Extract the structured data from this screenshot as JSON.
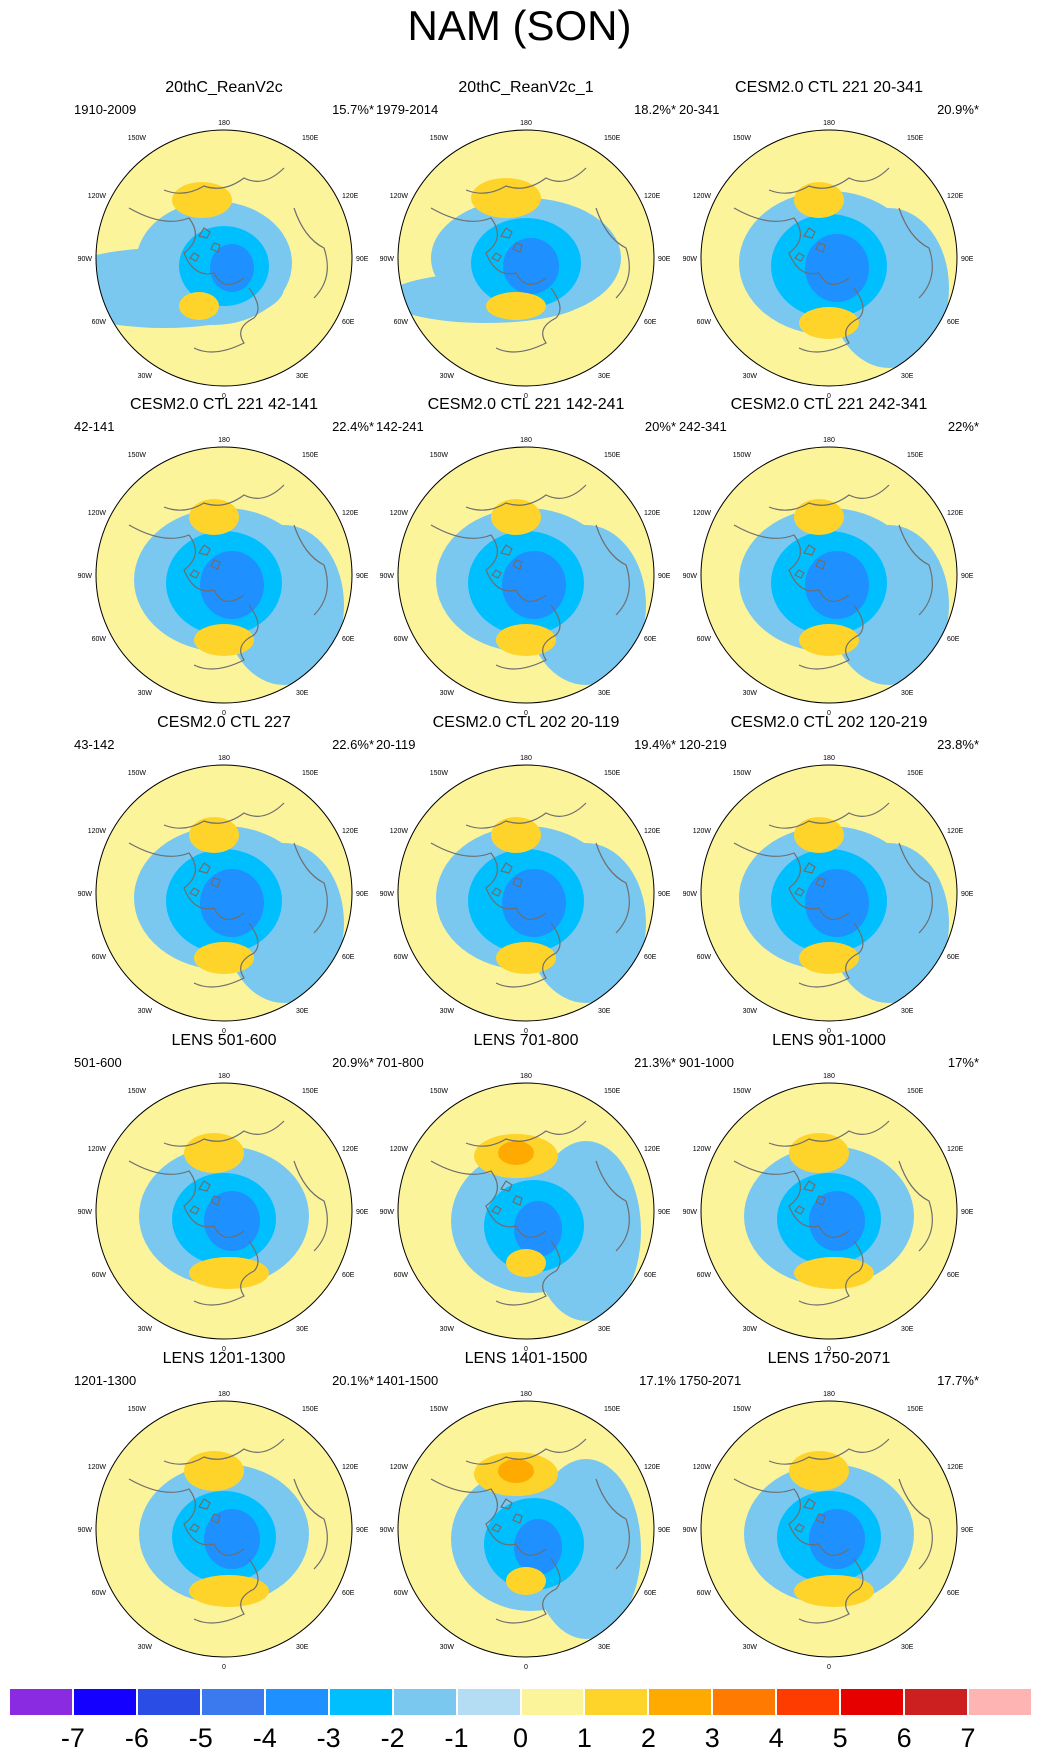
{
  "title": "NAM (SON)",
  "panels": [
    {
      "title": "20thC_ReanV2c",
      "period": "1910-2009",
      "variance": "15.7%*",
      "pattern": "A"
    },
    {
      "title": "20thC_ReanV2c_1",
      "period": "1979-2014",
      "variance": "18.2%*",
      "pattern": "B"
    },
    {
      "title": "CESM2.0 CTL 221 20-341",
      "period": "20-341",
      "variance": "20.9%*",
      "pattern": "C"
    },
    {
      "title": "CESM2.0 CTL 221 42-141",
      "period": "42-141",
      "variance": "22.4%*",
      "pattern": "C"
    },
    {
      "title": "CESM2.0 CTL 221 142-241",
      "period": "142-241",
      "variance": "20%*",
      "pattern": "C"
    },
    {
      "title": "CESM2.0 CTL 221 242-341",
      "period": "242-341",
      "variance": "22%*",
      "pattern": "C"
    },
    {
      "title": "CESM2.0 CTL 227",
      "period": "43-142",
      "variance": "22.6%*",
      "pattern": "C"
    },
    {
      "title": "CESM2.0 CTL 202 20-119",
      "period": "20-119",
      "variance": "19.4%*",
      "pattern": "C"
    },
    {
      "title": "CESM2.0 CTL 202 120-219",
      "period": "120-219",
      "variance": "23.8%*",
      "pattern": "C"
    },
    {
      "title": "LENS 501-600",
      "period": "501-600",
      "variance": "20.9%*",
      "pattern": "D"
    },
    {
      "title": "LENS 701-800",
      "period": "701-800",
      "variance": "21.3%*",
      "pattern": "E"
    },
    {
      "title": "LENS 901-1000",
      "period": "901-1000",
      "variance": "17%*",
      "pattern": "D"
    },
    {
      "title": "LENS 1201-1300",
      "period": "1201-1300",
      "variance": "20.1%*",
      "pattern": "D"
    },
    {
      "title": "LENS 1401-1500",
      "period": "1401-1500",
      "variance": "17.1%",
      "pattern": "E"
    },
    {
      "title": "LENS 1750-2071",
      "period": "1750-2071",
      "variance": "17.7%*",
      "pattern": "D"
    }
  ],
  "map_labels": {
    "top": "180",
    "bottom": "0",
    "left_upper": "150W",
    "left_mid_upper": "120W",
    "left_mid": "90W",
    "left_mid_lower": "60W",
    "left_lower": "30W",
    "right_upper": "150E",
    "right_mid_upper": "120E",
    "right_mid": "90E",
    "right_mid_lower": "60E",
    "right_lower": "30E"
  },
  "colorbar": {
    "ticks": [
      "-7",
      "-6",
      "-5",
      "-4",
      "-3",
      "-2",
      "-1",
      "0",
      "1",
      "2",
      "3",
      "4",
      "5",
      "6",
      "7"
    ],
    "colors": [
      "#8a2be2",
      "#1400ff",
      "#2a4de6",
      "#3b79ee",
      "#1e90ff",
      "#00bfff",
      "#7ac8f0",
      "#b4dcf2",
      "#fcf49a",
      "#ffd42a",
      "#ffaa00",
      "#ff7a00",
      "#ff3c00",
      "#e60000",
      "#cc1f1f",
      "#ffb4b4"
    ]
  }
}
